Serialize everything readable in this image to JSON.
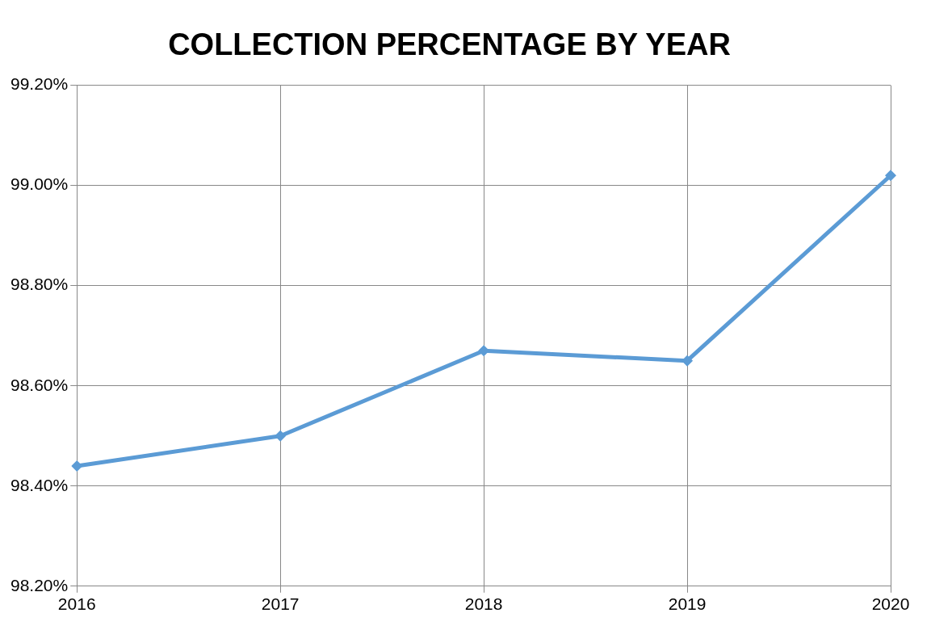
{
  "chart_data": {
    "type": "line",
    "title": "COLLECTION PERCENTAGE BY YEAR",
    "categories": [
      "2016",
      "2017",
      "2018",
      "2019",
      "2020"
    ],
    "series": [
      {
        "color": "#5b9bd5",
        "values": [
          98.44,
          98.5,
          98.67,
          98.65,
          99.02
        ]
      }
    ],
    "ylim": [
      98.2,
      99.2
    ],
    "yticks": [
      {
        "value": 98.2,
        "label": "98.20%"
      },
      {
        "value": 98.4,
        "label": "98.40%"
      },
      {
        "value": 98.6,
        "label": "98.60%"
      },
      {
        "value": 98.8,
        "label": "98.80%"
      },
      {
        "value": 99.0,
        "label": "99.00%"
      },
      {
        "value": 99.2,
        "label": "99.20%"
      }
    ],
    "grid": true,
    "legend": false,
    "marker": "diamond",
    "line_style": "solid"
  }
}
